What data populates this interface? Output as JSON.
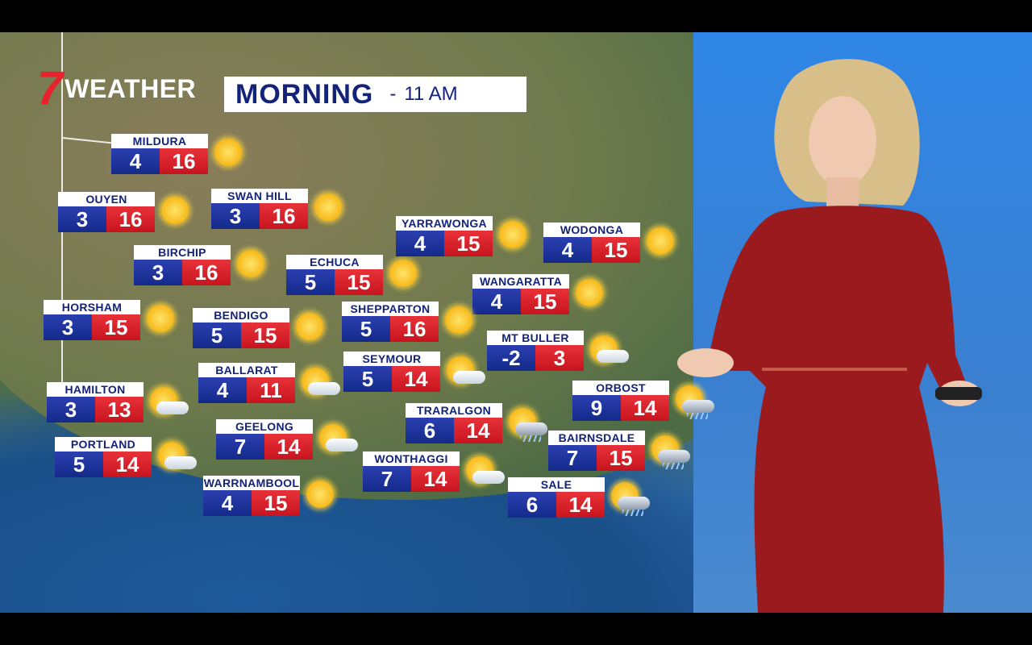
{
  "broadcast": {
    "logo_text": "WEATHER",
    "logo_numeral": "7",
    "title": "MORNING",
    "separator": "-",
    "time": "11 AM"
  },
  "colors": {
    "min_temp_bg": "#1f35a0",
    "max_temp_bg": "#d81e26",
    "label_text": "#13237a",
    "logo_red": "#e8212b"
  },
  "forecasts": [
    {
      "town": "MILDURA",
      "min": "4",
      "max": "16",
      "icon": "sun"
    },
    {
      "town": "OUYEN",
      "min": "3",
      "max": "16",
      "icon": "sun"
    },
    {
      "town": "SWAN HILL",
      "min": "3",
      "max": "16",
      "icon": "sun"
    },
    {
      "town": "BIRCHIP",
      "min": "3",
      "max": "16",
      "icon": "sun"
    },
    {
      "town": "ECHUCA",
      "min": "5",
      "max": "15",
      "icon": "sun"
    },
    {
      "town": "YARRAWONGA",
      "min": "4",
      "max": "15",
      "icon": "sun"
    },
    {
      "town": "WODONGA",
      "min": "4",
      "max": "15",
      "icon": "sun"
    },
    {
      "town": "WANGARATTA",
      "min": "4",
      "max": "15",
      "icon": "sun"
    },
    {
      "town": "HORSHAM",
      "min": "3",
      "max": "15",
      "icon": "sun"
    },
    {
      "town": "BENDIGO",
      "min": "5",
      "max": "15",
      "icon": "sun"
    },
    {
      "town": "SHEPPARTON",
      "min": "5",
      "max": "16",
      "icon": "sun"
    },
    {
      "town": "MT BULLER",
      "min": "-2",
      "max": "3",
      "icon": "sun-cloud"
    },
    {
      "town": "SEYMOUR",
      "min": "5",
      "max": "14",
      "icon": "sun-cloud"
    },
    {
      "town": "BALLARAT",
      "min": "4",
      "max": "11",
      "icon": "sun-cloud"
    },
    {
      "town": "HAMILTON",
      "min": "3",
      "max": "13",
      "icon": "sun-cloud"
    },
    {
      "town": "ORBOST",
      "min": "9",
      "max": "14",
      "icon": "sun-rain"
    },
    {
      "town": "TRARALGON",
      "min": "6",
      "max": "14",
      "icon": "sun-rain"
    },
    {
      "town": "GEELONG",
      "min": "7",
      "max": "14",
      "icon": "sun-cloud"
    },
    {
      "town": "BAIRNSDALE",
      "min": "7",
      "max": "15",
      "icon": "sun-rain"
    },
    {
      "town": "PORTLAND",
      "min": "5",
      "max": "14",
      "icon": "sun-cloud"
    },
    {
      "town": "WONTHAGGI",
      "min": "7",
      "max": "14",
      "icon": "sun-cloud"
    },
    {
      "town": "WARRNAMBOOL",
      "min": "4",
      "max": "15",
      "icon": "sun"
    },
    {
      "town": "SALE",
      "min": "6",
      "max": "14",
      "icon": "sun-rain"
    }
  ]
}
